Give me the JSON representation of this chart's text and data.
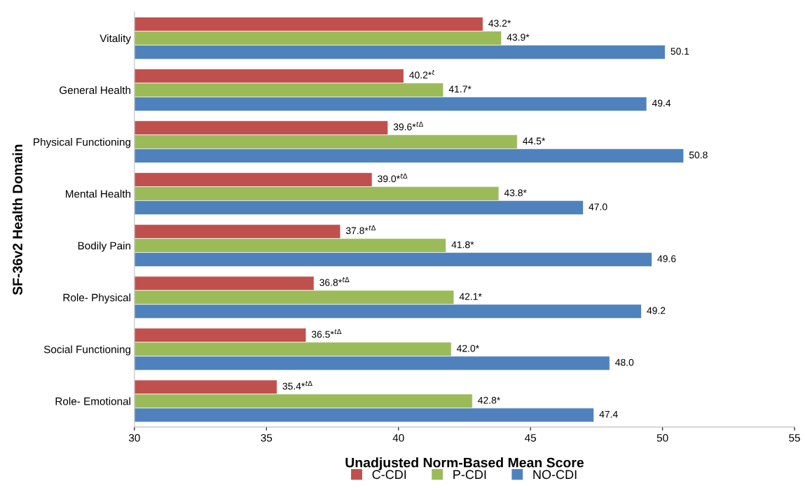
{
  "chart_data": {
    "type": "bar",
    "orientation": "horizontal",
    "xlabel": "Unadjusted Norm-Based Mean Score",
    "ylabel": "SF-36v2 Health Domain",
    "categories": [
      "Vitality",
      "General Health",
      "Physical Functioning",
      "Mental Health",
      "Bodily Pain",
      "Role- Physical",
      "Social Functioning",
      "Role- Emotional"
    ],
    "series": [
      {
        "name": "C-CDI",
        "color": "#c0504d",
        "values": [
          43.2,
          40.2,
          39.6,
          39.0,
          37.8,
          36.8,
          36.5,
          35.4
        ],
        "value_labels": [
          "43.2*",
          "40.2*$^{t}$",
          "39.6*$^{tΔ}$",
          "39.0*$^{tΔ}$",
          "37.8*$^{tΔ}$",
          "36.8*$^{tΔ}$",
          "36.5*$^{tΔ}$",
          "35.4*$^{tΔ}$"
        ]
      },
      {
        "name": "P-CDI",
        "color": "#9bbb59",
        "values": [
          43.9,
          41.7,
          44.5,
          43.8,
          41.8,
          42.1,
          42.0,
          42.8
        ],
        "value_labels": [
          "43.9*",
          "41.7*",
          "44.5*",
          "43.8*",
          "41.8*",
          "42.1*",
          "42.0*",
          "42.8*"
        ]
      },
      {
        "name": "NO-CDI",
        "color": "#4f81bd",
        "values": [
          50.1,
          49.4,
          50.8,
          47.0,
          49.6,
          49.2,
          48.0,
          47.4
        ],
        "value_labels": [
          "50.1",
          "49.4",
          "50.8",
          "47.0",
          "49.6",
          "49.2",
          "48.0",
          "47.4"
        ]
      }
    ],
    "xlim": [
      30,
      55
    ],
    "xticks": [
      30,
      35,
      40,
      45,
      50,
      55
    ],
    "grid": false,
    "legend": "bottom"
  }
}
